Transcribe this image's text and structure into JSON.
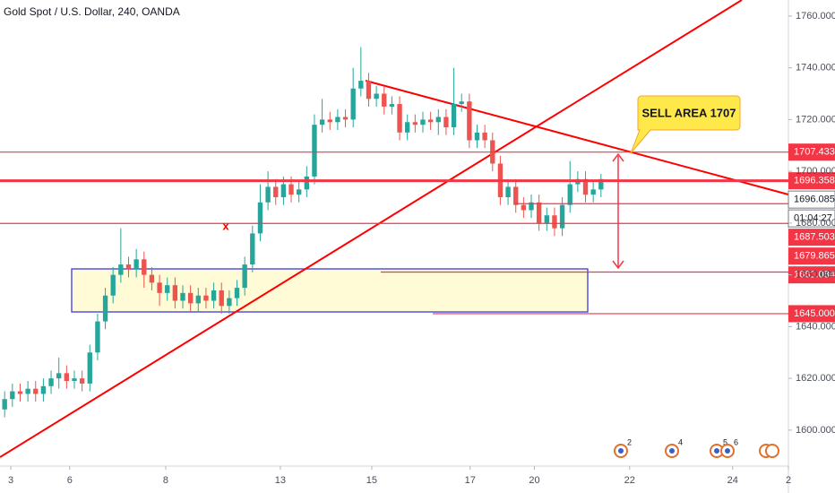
{
  "chart_data": {
    "type": "candlestick",
    "title": "Gold Spot / U.S. Dollar, 240, OANDA",
    "annotation": "SELL AREA 1707",
    "up_color": "#26a69a",
    "down_color": "#ef5350",
    "open": [
      1608,
      1612,
      1615,
      1614,
      1616,
      1614,
      1617,
      1620,
      1622,
      1619,
      1620,
      1618,
      1630,
      1642,
      1652,
      1660,
      1664,
      1662,
      1666,
      1660,
      1657,
      1653,
      1656,
      1650,
      1653,
      1649,
      1652,
      1650,
      1654,
      1648,
      1651,
      1655,
      1664,
      1676,
      1688,
      1694,
      1690,
      1695,
      1691,
      1693,
      1698,
      1718,
      1720,
      1719,
      1721,
      1720,
      1732,
      1735,
      1728,
      1730,
      1725,
      1726,
      1715,
      1719,
      1718,
      1720,
      1719,
      1721,
      1717,
      1726,
      1727,
      1712,
      1715,
      1712,
      1703,
      1690,
      1694,
      1687,
      1685,
      1688,
      1680,
      1683,
      1678,
      1687,
      1695,
      1697,
      1691,
      1693
    ],
    "high": [
      1615,
      1618,
      1618,
      1619,
      1619,
      1620,
      1623,
      1628,
      1625,
      1623,
      1623,
      1633,
      1645,
      1655,
      1663,
      1678,
      1667,
      1670,
      1669,
      1663,
      1660,
      1659,
      1659,
      1656,
      1656,
      1655,
      1655,
      1657,
      1657,
      1654,
      1658,
      1667,
      1679,
      1695,
      1700,
      1697,
      1698,
      1698,
      1696,
      1702,
      1722,
      1728,
      1723,
      1724,
      1724,
      1740,
      1748,
      1738,
      1733,
      1733,
      1729,
      1729,
      1722,
      1722,
      1723,
      1723,
      1724,
      1724,
      1740,
      1730,
      1730,
      1718,
      1718,
      1715,
      1706,
      1697,
      1697,
      1690,
      1691,
      1691,
      1686,
      1686,
      1690,
      1704,
      1700,
      1700,
      1696,
      1699
    ],
    "low": [
      1605,
      1609,
      1611,
      1611,
      1611,
      1611,
      1614,
      1616,
      1616,
      1616,
      1615,
      1615,
      1627,
      1639,
      1649,
      1657,
      1659,
      1659,
      1655,
      1654,
      1648,
      1650,
      1647,
      1647,
      1646,
      1646,
      1647,
      1647,
      1645,
      1645,
      1648,
      1652,
      1661,
      1673,
      1685,
      1687,
      1687,
      1688,
      1688,
      1690,
      1695,
      1715,
      1716,
      1716,
      1717,
      1717,
      1729,
      1725,
      1725,
      1722,
      1722,
      1712,
      1712,
      1715,
      1715,
      1716,
      1714,
      1714,
      1714,
      1723,
      1709,
      1709,
      1709,
      1700,
      1687,
      1687,
      1684,
      1682,
      1682,
      1677,
      1677,
      1675,
      1675,
      1684,
      1692,
      1688,
      1688,
      1690
    ],
    "close": [
      1612,
      1615,
      1614,
      1616,
      1614,
      1617,
      1620,
      1622,
      1619,
      1620,
      1618,
      1630,
      1642,
      1652,
      1660,
      1664,
      1662,
      1666,
      1660,
      1657,
      1653,
      1656,
      1650,
      1653,
      1649,
      1652,
      1650,
      1654,
      1648,
      1651,
      1655,
      1664,
      1676,
      1688,
      1694,
      1690,
      1695,
      1691,
      1693,
      1698,
      1718,
      1720,
      1719,
      1721,
      1720,
      1732,
      1735,
      1728,
      1730,
      1725,
      1726,
      1715,
      1719,
      1718,
      1720,
      1719,
      1721,
      1717,
      1726,
      1727,
      1712,
      1715,
      1712,
      1703,
      1690,
      1694,
      1687,
      1685,
      1688,
      1680,
      1683,
      1678,
      1687,
      1695,
      1697,
      1691,
      1693,
      1697
    ],
    "xlim": [
      -0.6,
      101.2
    ],
    "xticks": [
      {
        "value": 0.8,
        "label": "3"
      },
      {
        "value": 8.4,
        "label": "6"
      },
      {
        "value": 20.8,
        "label": "8"
      },
      {
        "value": 35.6,
        "label": "13"
      },
      {
        "value": 47.4,
        "label": "15"
      },
      {
        "value": 60.1,
        "label": "17"
      },
      {
        "value": 68.4,
        "label": "20"
      },
      {
        "value": 80.7,
        "label": "22"
      },
      {
        "value": 94,
        "label": "24"
      },
      {
        "value": 101.2,
        "label": "2"
      }
    ],
    "ylim": [
      1586.1,
      1766.2
    ],
    "yticks": [
      {
        "value": 1600,
        "label": "1600.000"
      },
      {
        "value": 1620,
        "label": "1620.000"
      },
      {
        "value": 1640,
        "label": "1640.000"
      },
      {
        "value": 1660,
        "label": "1660.000"
      },
      {
        "value": 1680,
        "label": "1680.000"
      },
      {
        "value": 1700,
        "label": "1700.000"
      },
      {
        "value": 1720,
        "label": "1720.000"
      },
      {
        "value": 1740,
        "label": "1740.000"
      },
      {
        "value": 1760,
        "label": "1760.000"
      }
    ],
    "grid": false,
    "price_lines": [
      {
        "value": 1707.433,
        "color": "#f23645",
        "line": "thin"
      },
      {
        "value": 1696.358,
        "color": "#f23645",
        "line": "thick"
      },
      {
        "value": 1696.085,
        "color": "#787b86",
        "line": "none",
        "label_style": "outline"
      },
      {
        "value": 1687.503,
        "color": "#f23645",
        "line": "thin"
      },
      {
        "value": 1679.865,
        "color": "#f23645",
        "line": "thin"
      },
      {
        "value": 1661.084,
        "color": "#f23645",
        "line": "thin"
      },
      {
        "value": 1645,
        "label": "1645.000",
        "color": "#f23645",
        "line": "thin"
      }
    ],
    "countdown": "01:04:27",
    "events": [
      2,
      4,
      5,
      6
    ]
  }
}
